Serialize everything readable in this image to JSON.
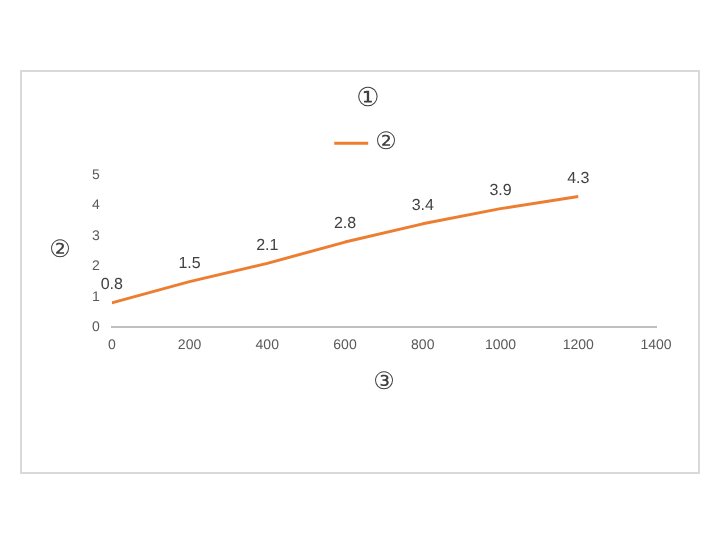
{
  "chart_data": {
    "type": "line",
    "title": "①",
    "xlabel": "③",
    "ylabel": "②",
    "x": [
      0,
      200,
      400,
      600,
      800,
      1000,
      1200
    ],
    "series": [
      {
        "name": "②",
        "color": "#ed7d31",
        "values": [
          0.8,
          1.5,
          2.1,
          2.8,
          3.4,
          3.9,
          4.3
        ]
      }
    ],
    "xlim": [
      0,
      1400
    ],
    "xticks": [
      0,
      200,
      400,
      600,
      800,
      1000,
      1200,
      1400
    ],
    "ylim": [
      0,
      5
    ],
    "yticks": [
      0,
      1,
      2,
      3,
      4,
      5
    ],
    "grid": false,
    "legend": "top",
    "marker": "none",
    "line_style": "solid",
    "data_labels": true
  }
}
